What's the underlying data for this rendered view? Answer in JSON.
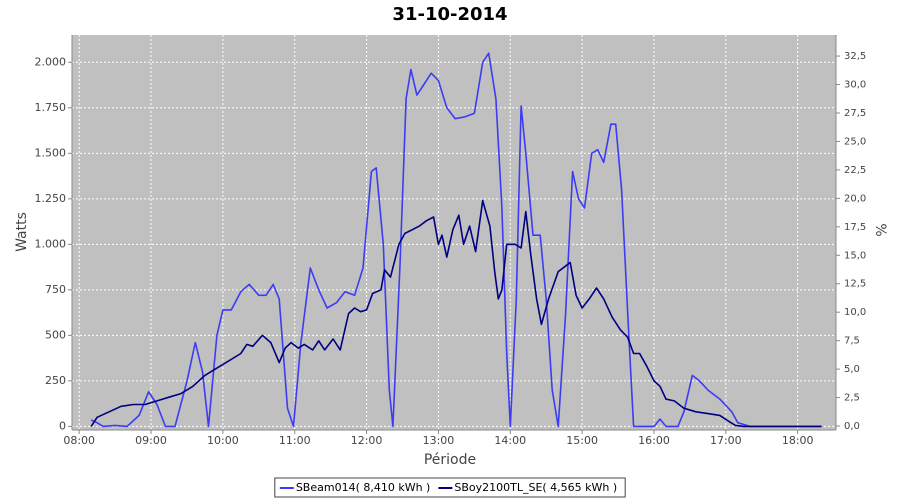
{
  "chart_data": {
    "type": "line",
    "title": "31-10-2014",
    "xlabel": "Période",
    "ylabel": "Watts",
    "y2label": "%",
    "xlim": [
      "07:54",
      "18:32"
    ],
    "xticks": [
      "08:00",
      "09:00",
      "10:00",
      "11:00",
      "12:00",
      "13:00",
      "14:00",
      "15:00",
      "16:00",
      "17:00",
      "18:00"
    ],
    "ylim": [
      -20,
      2150
    ],
    "yticks": [
      0,
      250,
      500,
      750,
      {
        "value": 1000,
        "label": "1.000"
      },
      {
        "value": 1250,
        "label": "1.250"
      },
      {
        "value": 1500,
        "label": "1.500"
      },
      {
        "value": 1750,
        "label": "1.750"
      },
      {
        "value": 2000,
        "label": "2.000"
      }
    ],
    "y2lim": [
      -0.35,
      34.35
    ],
    "y2ticks": [
      {
        "value": 0,
        "label": "0,0"
      },
      {
        "value": 2.5,
        "label": "2,5"
      },
      {
        "value": 5,
        "label": "5,0"
      },
      {
        "value": 7.5,
        "label": "7,5"
      },
      {
        "value": 10,
        "label": "10,0"
      },
      {
        "value": 12.5,
        "label": "12,5"
      },
      {
        "value": 15,
        "label": "15,0"
      },
      {
        "value": 17.5,
        "label": "17,5"
      },
      {
        "value": 20,
        "label": "20,0"
      },
      {
        "value": 22.5,
        "label": "22,5"
      },
      {
        "value": 25,
        "label": "25,0"
      },
      {
        "value": 27.5,
        "label": "27,5"
      },
      {
        "value": 30,
        "label": "30,0"
      },
      {
        "value": 32.5,
        "label": "32,5"
      }
    ],
    "grid": true,
    "legend": "bottom",
    "series": [
      {
        "name": "SBeam014( 8,410 kWh )",
        "color": "#3c3cf5",
        "x": [
          "08:10",
          "08:15",
          "08:20",
          "08:30",
          "08:40",
          "08:50",
          "08:58",
          "09:05",
          "09:12",
          "09:20",
          "09:30",
          "09:37",
          "09:43",
          "09:48",
          "09:55",
          "10:00",
          "10:07",
          "10:15",
          "10:22",
          "10:30",
          "10:36",
          "10:42",
          "10:47",
          "10:54",
          "10:59",
          "11:05",
          "11:13",
          "11:20",
          "11:27",
          "11:35",
          "11:42",
          "11:50",
          "11:57",
          "12:04",
          "12:08",
          "12:14",
          "12:19",
          "12:22",
          "12:28",
          "12:33",
          "12:37",
          "12:42",
          "12:47",
          "12:54",
          "13:00",
          "13:07",
          "13:14",
          "13:22",
          "13:30",
          "13:37",
          "13:42",
          "13:48",
          "13:53",
          "13:57",
          "14:00",
          "14:05",
          "14:09",
          "14:13",
          "14:19",
          "14:25",
          "14:30",
          "14:35",
          "14:40",
          "14:46",
          "14:52",
          "14:57",
          "15:02",
          "15:08",
          "15:13",
          "15:18",
          "15:24",
          "15:28",
          "15:33",
          "15:39",
          "15:43",
          "15:50",
          "15:55",
          "16:00",
          "16:05",
          "16:10",
          "16:20",
          "16:25",
          "16:32",
          "16:38",
          "16:45",
          "16:55",
          "17:05",
          "17:10",
          "17:20",
          "18:20"
        ],
        "values": [
          35,
          20,
          0,
          5,
          0,
          60,
          190,
          120,
          0,
          0,
          250,
          460,
          300,
          0,
          500,
          640,
          640,
          740,
          780,
          720,
          720,
          780,
          700,
          100,
          0,
          450,
          870,
          750,
          650,
          680,
          740,
          720,
          870,
          1400,
          1420,
          1000,
          200,
          0,
          900,
          1800,
          1960,
          1820,
          1870,
          1940,
          1900,
          1750,
          1690,
          1700,
          1720,
          2000,
          2050,
          1800,
          1200,
          400,
          0,
          700,
          1760,
          1500,
          1050,
          1050,
          700,
          200,
          0,
          600,
          1400,
          1250,
          1200,
          1500,
          1520,
          1450,
          1660,
          1660,
          1300,
          500,
          0,
          0,
          0,
          0,
          40,
          0,
          0,
          80,
          280,
          250,
          200,
          150,
          80,
          20,
          0,
          0
        ]
      },
      {
        "name": "SBoy2100TL_SE( 4,565 kWh )",
        "color": "#000080",
        "x": [
          "08:10",
          "08:15",
          "08:25",
          "08:35",
          "08:45",
          "08:55",
          "09:05",
          "09:15",
          "09:25",
          "09:35",
          "09:45",
          "09:55",
          "10:05",
          "10:15",
          "10:20",
          "10:25",
          "10:33",
          "10:40",
          "10:47",
          "10:52",
          "10:57",
          "11:03",
          "11:08",
          "11:15",
          "11:20",
          "11:25",
          "11:32",
          "11:38",
          "11:45",
          "11:50",
          "11:55",
          "12:00",
          "12:05",
          "12:12",
          "12:15",
          "12:20",
          "12:27",
          "12:32",
          "12:38",
          "12:44",
          "12:50",
          "12:56",
          "13:00",
          "13:03",
          "13:07",
          "13:12",
          "13:17",
          "13:21",
          "13:26",
          "13:31",
          "13:37",
          "13:43",
          "13:47",
          "13:50",
          "13:53",
          "13:57",
          "14:04",
          "14:09",
          "14:13",
          "14:17",
          "14:22",
          "14:26",
          "14:32",
          "14:40",
          "14:46",
          "14:50",
          "14:55",
          "15:00",
          "15:06",
          "15:12",
          "15:18",
          "15:25",
          "15:32",
          "15:38",
          "15:43",
          "15:48",
          "15:54",
          "16:00",
          "16:05",
          "16:10",
          "16:17",
          "16:25",
          "16:35",
          "16:45",
          "16:55",
          "17:02",
          "17:08",
          "17:15",
          "18:20"
        ],
        "values": [
          0,
          50,
          80,
          110,
          120,
          120,
          140,
          160,
          180,
          220,
          280,
          320,
          360,
          400,
          450,
          440,
          500,
          460,
          350,
          430,
          460,
          430,
          450,
          420,
          470,
          420,
          480,
          420,
          620,
          650,
          630,
          640,
          730,
          750,
          860,
          820,
          1000,
          1060,
          1080,
          1100,
          1130,
          1150,
          1000,
          1050,
          930,
          1080,
          1160,
          1000,
          1100,
          960,
          1240,
          1100,
          850,
          700,
          750,
          1000,
          1000,
          980,
          1180,
          950,
          700,
          560,
          700,
          850,
          880,
          900,
          720,
          650,
          700,
          760,
          700,
          600,
          530,
          490,
          400,
          400,
          330,
          250,
          220,
          150,
          140,
          100,
          80,
          70,
          60,
          30,
          5,
          0,
          0
        ]
      }
    ]
  }
}
